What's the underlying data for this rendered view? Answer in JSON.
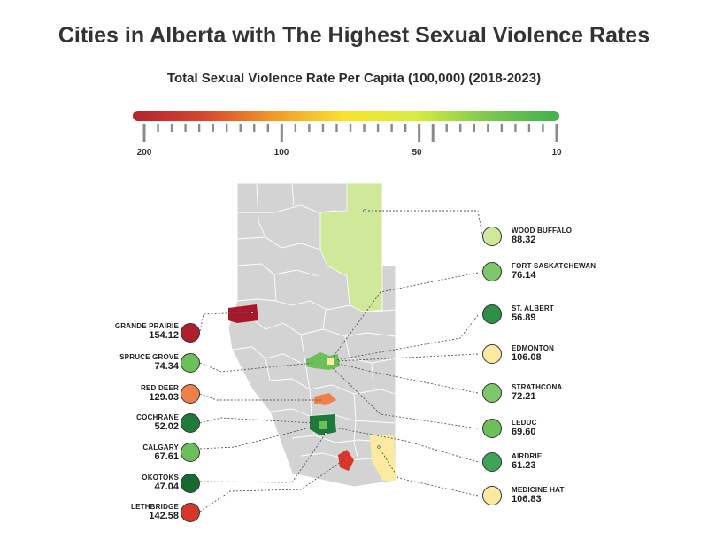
{
  "title": "Cities in Alberta with The Highest Sexual Violence Rates",
  "subtitle": "Total Sexual Violence Rate Per Capita (100,000)  (2018-2023)",
  "scale": {
    "gradient_colors": [
      "#b3232f",
      "#d9452d",
      "#f39a2a",
      "#f7e42c",
      "#d6ec40",
      "#7cc84e",
      "#3fb04f"
    ],
    "tick_labels": [
      "200",
      "100",
      "50",
      "10"
    ]
  },
  "colors": {
    "map_fill": "#d3d3d3",
    "map_border": "#ffffff",
    "leader_line": "#555555"
  },
  "cities_left": [
    {
      "name": "GRANDE PRAIRIE",
      "value": "154.12",
      "color": "#b11e2d"
    },
    {
      "name": "SPRUCE GROVE",
      "value": "74.34",
      "color": "#6cc05a"
    },
    {
      "name": "RED DEER",
      "value": "129.03",
      "color": "#f0804a"
    },
    {
      "name": "COCHRANE",
      "value": "52.02",
      "color": "#1e7a3a"
    },
    {
      "name": "CALGARY",
      "value": "67.61",
      "color": "#6cc05a"
    },
    {
      "name": "OKOTOKS",
      "value": "47.04",
      "color": "#166a30"
    },
    {
      "name": "LETHBRIDGE",
      "value": "142.58",
      "color": "#d9362a"
    }
  ],
  "cities_right": [
    {
      "name": "WOOD BUFFALO",
      "value": "88.32",
      "color": "#cfe89a"
    },
    {
      "name": "FORT SASKATCHEWAN",
      "value": "76.14",
      "color": "#7cc86a"
    },
    {
      "name": "ST. ALBERT",
      "value": "56.89",
      "color": "#2f8f45"
    },
    {
      "name": "EDMONTON",
      "value": "106.08",
      "color": "#fbeaa0"
    },
    {
      "name": "STRATHCONA",
      "value": "72.21",
      "color": "#7cc86a"
    },
    {
      "name": "LEDUC",
      "value": "69.60",
      "color": "#6cc05a"
    },
    {
      "name": "AIRDRIE",
      "value": "61.23",
      "color": "#3fa456"
    },
    {
      "name": "MEDICINE HAT",
      "value": "106.83",
      "color": "#fbeaa0"
    }
  ]
}
